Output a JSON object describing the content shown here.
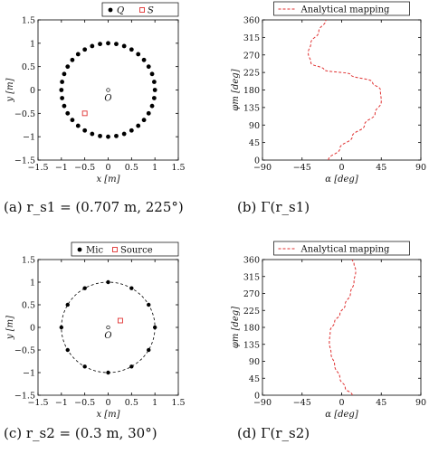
{
  "captions": {
    "a": "(a)  r_s1 = (0.707 m, 225°)",
    "b": "(b)  Γ(r_s1)",
    "c": "(c)  r_s2 = (0.3 m, 30°)",
    "d": "(d)  Γ(r_s2)"
  },
  "colors": {
    "marker": "#000000",
    "source": "#e03030",
    "mapping": "#e03030",
    "axis": "#000000"
  },
  "chart_data": [
    {
      "id": "a",
      "type": "scatter",
      "xlabel": "x [m]",
      "ylabel": "y [m]",
      "xlim": [
        -1.5,
        1.5
      ],
      "ylim": [
        -1.5,
        1.5
      ],
      "xticks": [
        "-1.5",
        "-1",
        "-0.5",
        "0",
        "0.5",
        "1",
        "1.5"
      ],
      "yticks": [
        "-1.5",
        "-1",
        "-0.5",
        "0",
        "0.5",
        "1",
        "1.5"
      ],
      "legend": [
        "Q",
        "S"
      ],
      "legend_position": "top-right",
      "origin_label": "O",
      "circle_dashed": false,
      "circle_radius": 1.0,
      "points_count": 36,
      "source": {
        "x": -0.5,
        "y": -0.5
      }
    },
    {
      "id": "b",
      "type": "line",
      "xlabel": "α [deg]",
      "ylabel": "φm [deg]",
      "xlim": [
        -90,
        90
      ],
      "ylim": [
        0,
        360
      ],
      "xticks": [
        "-90",
        "-45",
        "0",
        "45",
        "90"
      ],
      "yticks": [
        "0",
        "45",
        "90",
        "135",
        "180",
        "225",
        "270",
        "315",
        "360"
      ],
      "legend": [
        "Analytical mapping"
      ],
      "legend_position": "top",
      "series": [
        {
          "name": "Analytical mapping",
          "x": [
            -15,
            -2,
            12,
            26,
            38,
            45,
            44,
            35,
            10,
            -20,
            -35,
            -38,
            -35,
            -26,
            -18
          ],
          "y": [
            0,
            30,
            60,
            90,
            120,
            150,
            180,
            200,
            220,
            232,
            250,
            275,
            300,
            330,
            360
          ]
        }
      ]
    },
    {
      "id": "c",
      "type": "scatter",
      "xlabel": "x [m]",
      "ylabel": "y [m]",
      "xlim": [
        -1.5,
        1.5
      ],
      "ylim": [
        -1.5,
        1.5
      ],
      "xticks": [
        "-1.5",
        "-1",
        "-0.5",
        "0",
        "0.5",
        "1",
        "1.5"
      ],
      "yticks": [
        "-1.5",
        "-1",
        "-0.5",
        "0",
        "0.5",
        "1",
        "1.5"
      ],
      "legend": [
        "Mic",
        "Source"
      ],
      "legend_position": "top-right",
      "origin_label": "O",
      "circle_dashed": true,
      "circle_radius": 1.0,
      "points_count": 12,
      "source": {
        "x": 0.26,
        "y": 0.15
      }
    },
    {
      "id": "d",
      "type": "line",
      "xlabel": "α [deg]",
      "ylabel": "φm [deg]",
      "xlim": [
        -90,
        90
      ],
      "ylim": [
        0,
        360
      ],
      "xticks": [
        "-90",
        "-45",
        "0",
        "45",
        "90"
      ],
      "yticks": [
        "0",
        "45",
        "90",
        "135",
        "180",
        "225",
        "270",
        "315",
        "360"
      ],
      "legend": [
        "Analytical mapping"
      ],
      "legend_position": "top",
      "series": [
        {
          "name": "Analytical mapping",
          "x": [
            12,
            4,
            -2,
            -8,
            -12,
            -14,
            -13,
            -8,
            -2,
            4,
            10,
            14,
            16,
            14,
            12
          ],
          "y": [
            0,
            20,
            45,
            80,
            110,
            140,
            170,
            195,
            215,
            240,
            270,
            300,
            330,
            350,
            360
          ]
        }
      ]
    }
  ]
}
